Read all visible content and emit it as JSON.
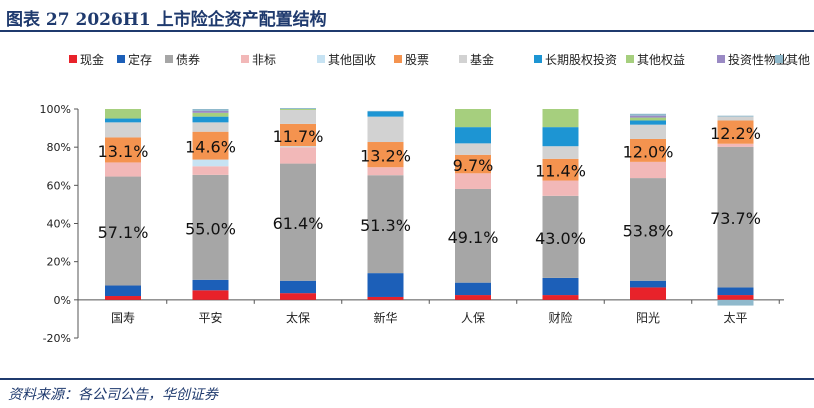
{
  "header": {
    "title": "图表 27   2026H1 上市险企资产配置结构"
  },
  "footer": {
    "source": "资料来源：各公司公告，华创证券"
  },
  "chart_data": {
    "type": "bar",
    "stacked": true,
    "categories": [
      "国寿",
      "平安",
      "太保",
      "新华",
      "人保",
      "财险",
      "阳光",
      "太平"
    ],
    "y_ticks": [
      "100%",
      "80%",
      "60%",
      "40%",
      "20%",
      "0%",
      "-20%"
    ],
    "ylim": [
      -20,
      100
    ],
    "grid": false,
    "legend_position": "top",
    "series": [
      {
        "name": "现金",
        "color": "#e8222a",
        "values": [
          2,
          5,
          3.5,
          1.5,
          2.5,
          2.5,
          6.5,
          2.5
        ]
      },
      {
        "name": "定存",
        "color": "#1c5fb8",
        "values": [
          5.5,
          5.5,
          6.5,
          12.5,
          6.5,
          9,
          3.5,
          4
        ]
      },
      {
        "name": "债券",
        "color": "#a6a6a6",
        "values": [
          57.1,
          55.0,
          61.4,
          51.3,
          49.1,
          43.0,
          53.8,
          73.7
        ]
      },
      {
        "name": "非标",
        "color": "#f2b8b8",
        "values": [
          7.4,
          4.5,
          8.6,
          4.2,
          8.2,
          8,
          8.5,
          1.6
        ]
      },
      {
        "name": "其他固收",
        "color": "#c7e3f3",
        "values": [
          0,
          3.5,
          0.5,
          0,
          0,
          0,
          0,
          0
        ]
      },
      {
        "name": "股票",
        "color": "#f4934f",
        "values": [
          13.1,
          14.6,
          11.7,
          13.2,
          9.7,
          11.4,
          12.0,
          12.2
        ]
      },
      {
        "name": "基金",
        "color": "#d2d2d2",
        "values": [
          7.9,
          4.9,
          7.3,
          13.3,
          6,
          6.6,
          7.5,
          2
        ]
      },
      {
        "name": "长期股权投资",
        "color": "#1d95d3",
        "values": [
          2,
          3,
          0,
          2.8,
          8.5,
          10,
          2.2,
          0
        ]
      },
      {
        "name": "其他权益",
        "color": "#a6cf7e",
        "values": [
          5,
          2,
          0.5,
          0,
          9.5,
          9.5,
          1.5,
          0
        ]
      },
      {
        "name": "投资性物业",
        "color": "#9a8ac4",
        "values": [
          0,
          1,
          0,
          0,
          0,
          0,
          1,
          0
        ]
      },
      {
        "name": "其他",
        "color": "#8fb9cc",
        "values": [
          0,
          1,
          0.5,
          0.2,
          0,
          0,
          1,
          0.5
        ]
      }
    ],
    "negative_other": [
      0,
      0,
      0,
      0,
      0,
      0,
      0,
      -3
    ],
    "data_labels": {
      "债券": [
        "57.1%",
        "55.0%",
        "61.4%",
        "51.3%",
        "49.1%",
        "43.0%",
        "53.8%",
        "73.7%"
      ],
      "股票": [
        "13.1%",
        "14.6%",
        "11.7%",
        "13.2%",
        "9.7%",
        "11.4%",
        "12.0%",
        "12.2%"
      ]
    }
  }
}
